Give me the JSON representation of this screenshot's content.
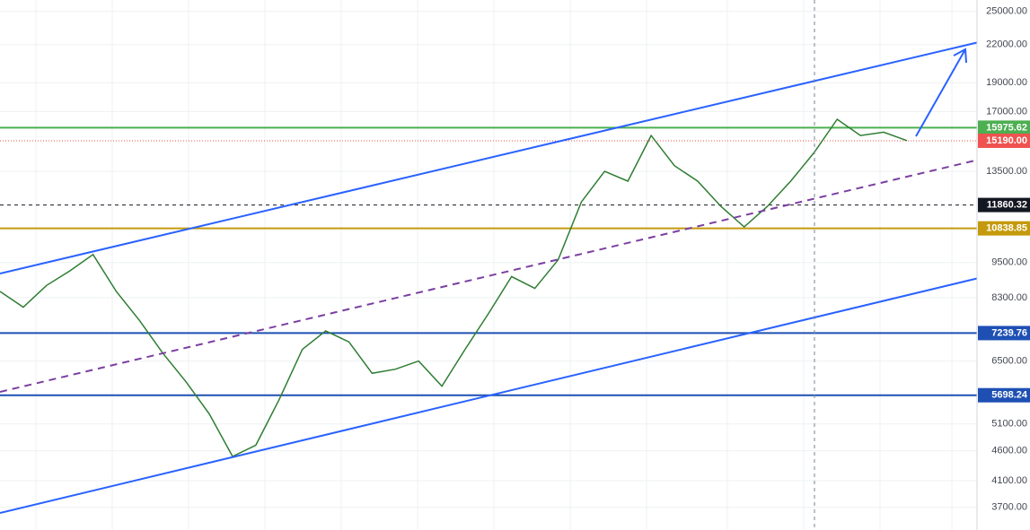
{
  "chart_data": {
    "type": "line",
    "values": [
      8500,
      8000,
      8700,
      9200,
      9800,
      8500,
      7600,
      6700,
      6000,
      5300,
      4500,
      4700,
      5600,
      6800,
      7300,
      7000,
      6200,
      6300,
      6500,
      5900,
      6800,
      7800,
      9000,
      8600,
      9600,
      12000,
      13500,
      13000,
      15500,
      13800,
      13000,
      11800,
      10900,
      11800,
      13000,
      14500,
      16500,
      15500,
      15700,
      15200
    ],
    "color": "#2e7d32",
    "log_scale": true,
    "grid": true,
    "ylim": [
      3390,
      26130
    ],
    "yticks": [
      {
        "value": 25000,
        "label": "25000.00"
      },
      {
        "value": 22000,
        "label": "22000.00"
      },
      {
        "value": 19000,
        "label": "19000.00"
      },
      {
        "value": 17000,
        "label": "17000.00"
      },
      {
        "value": 13500,
        "label": "13500.00"
      },
      {
        "value": 9500,
        "label": "9500.00"
      },
      {
        "value": 8300,
        "label": "8300.00"
      },
      {
        "value": 6500,
        "label": "6500.00"
      },
      {
        "value": 5100,
        "label": "5100.00"
      },
      {
        "value": 4600,
        "label": "4600.00"
      },
      {
        "value": 4100,
        "label": "4100.00"
      },
      {
        "value": 3700,
        "label": "3700.00"
      }
    ],
    "levels": [
      {
        "value": 15975.62,
        "label": "15975.62",
        "color": "#4caf50",
        "style": "solid"
      },
      {
        "value": 15190,
        "label": "15190.00",
        "color": "#ef5350",
        "style": "dotted"
      },
      {
        "value": 11860.32,
        "label": "11860.32",
        "color": "#131722",
        "style": "dashed"
      },
      {
        "value": 10838.85,
        "label": "10838.85",
        "color": "#c49a0c",
        "style": "solid"
      },
      {
        "value": 7239.76,
        "label": "7239.76",
        "color": "#1e50b4",
        "style": "solid"
      },
      {
        "value": 5698.24,
        "label": "5698.24",
        "color": "#1e50b4",
        "style": "solid"
      }
    ]
  }
}
